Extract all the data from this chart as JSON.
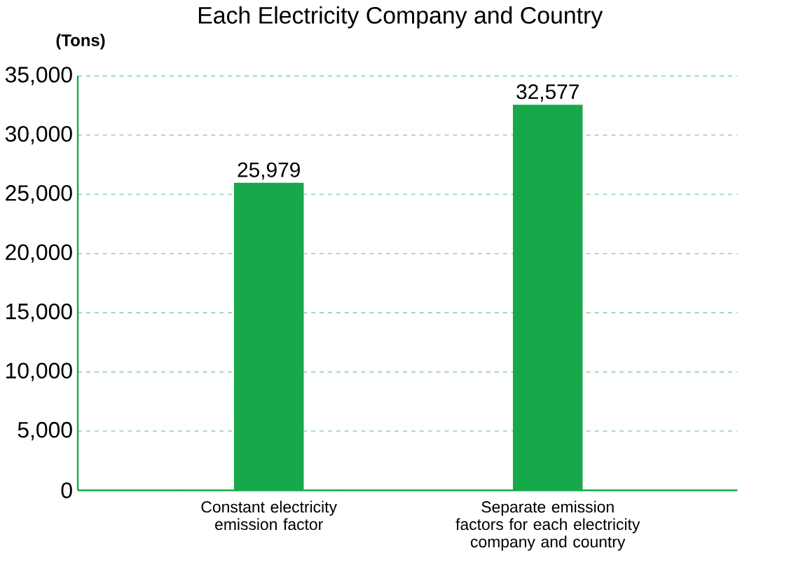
{
  "chart_data": {
    "type": "bar",
    "title": "Each Electricity Company and Country",
    "ylabel": "(Tons)",
    "categories": [
      "Constant electricity emission factor",
      "Separate emission factors for each electricity company and country"
    ],
    "values": [
      25979,
      32577
    ],
    "color": "#16a84a",
    "ylim": [
      0,
      35000
    ],
    "yticks": [
      {
        "value": 0,
        "label": "0"
      },
      {
        "value": 5000,
        "label": "5,000"
      },
      {
        "value": 10000,
        "label": "10,000"
      },
      {
        "value": 15000,
        "label": "15,000"
      },
      {
        "value": 20000,
        "label": "20,000"
      },
      {
        "value": 25000,
        "label": "25,000"
      },
      {
        "value": 30000,
        "label": "30,000"
      },
      {
        "value": 35000,
        "label": "35,000"
      }
    ],
    "value_labels": [
      "25,979",
      "32,577"
    ],
    "grid": "y"
  }
}
